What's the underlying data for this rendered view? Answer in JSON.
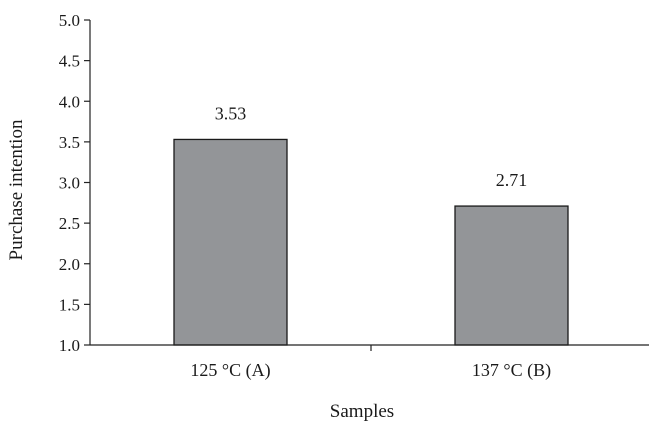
{
  "chart_data": {
    "type": "bar",
    "title": "",
    "xlabel": "Samples",
    "ylabel": "Purchase intention",
    "ylim": [
      1.0,
      5.0
    ],
    "yticks": [
      "1.0",
      "1.5",
      "2.0",
      "2.5",
      "3.0",
      "3.5",
      "4.0",
      "4.5",
      "5.0"
    ],
    "categories": [
      "125 °C (A)",
      "137 °C (B)"
    ],
    "values": [
      3.53,
      2.71
    ],
    "data_labels": [
      "3.53",
      "2.71"
    ],
    "bar_color": "#939598",
    "grid": false,
    "legend": "none"
  }
}
